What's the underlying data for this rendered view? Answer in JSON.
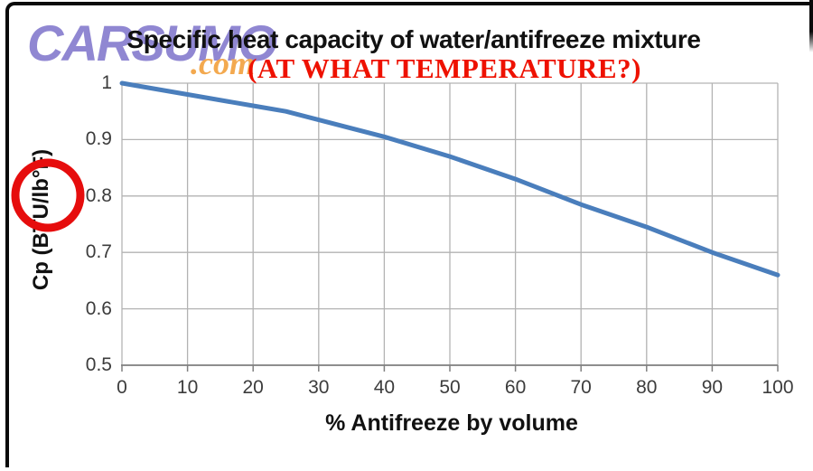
{
  "watermark": {
    "name": "CARSUMO",
    "tld": ".com"
  },
  "annotation": {
    "text": "(AT WHAT TEMPERATURE?)"
  },
  "colors": {
    "line": "#4a7ebc",
    "grid": "#b3b3b3",
    "axis": "#808080",
    "annotation_red": "#ee1100",
    "circle_red": "#e60d0d",
    "logo_purple": "#9087d2",
    "logo_orange": "#f3a94f",
    "title_black": "#111111"
  },
  "chart_data": {
    "type": "line",
    "title": "Specific heat capacity of water/antifreeze mixture",
    "xlabel": "% Antifreeze by volume",
    "ylabel": "Cp (BTU/lb°F)",
    "x": [
      0,
      10,
      20,
      25,
      30,
      40,
      50,
      60,
      70,
      80,
      90,
      100
    ],
    "y": [
      1.0,
      0.98,
      0.96,
      0.95,
      0.935,
      0.905,
      0.87,
      0.83,
      0.785,
      0.745,
      0.7,
      0.66
    ],
    "xlim": [
      0,
      100
    ],
    "ylim": [
      0.5,
      1.0
    ],
    "x_ticks": [
      0,
      10,
      20,
      30,
      40,
      50,
      60,
      70,
      80,
      90,
      100
    ],
    "x_tick_labels": [
      "0",
      "10",
      "20",
      "30",
      "40",
      "50",
      "60",
      "70",
      "80",
      "90",
      "100"
    ],
    "y_ticks": [
      1.0,
      0.9,
      0.8,
      0.7,
      0.6,
      0.5
    ],
    "y_tick_labels": [
      "1",
      "0.9",
      "0.8",
      "0.7",
      "0.6",
      "0.5"
    ],
    "grid": true,
    "legend": false
  }
}
